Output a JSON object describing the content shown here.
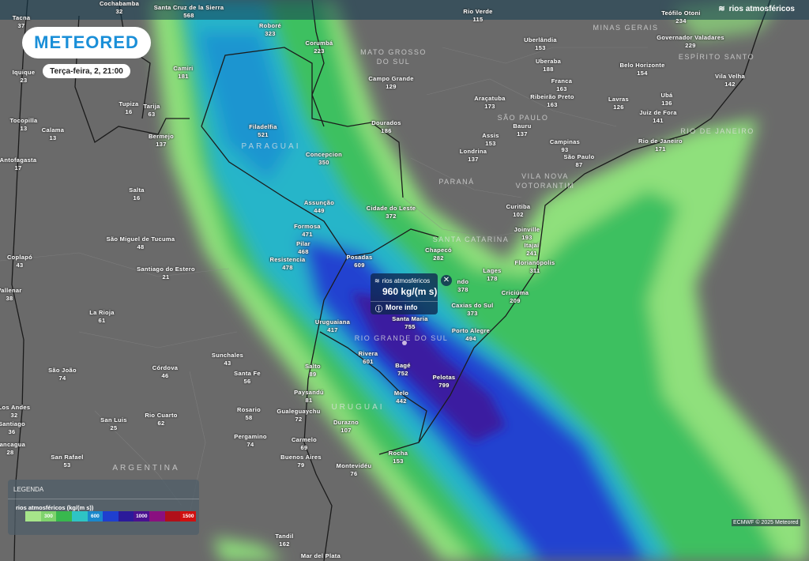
{
  "app": {
    "logo_text": "METEORED",
    "date_label": "Terça-feira, 2, 21:00"
  },
  "layer": {
    "title": "rios atmosféricos",
    "icon": "wind-layers-icon"
  },
  "popup": {
    "title": "rios atmosféricos",
    "value": "960 kg/(m s)",
    "more_info": "More info",
    "close": "✕"
  },
  "legend": {
    "header": "LEGENDA",
    "unit_label": "rios atmosféricos (kg/(m s))",
    "scale": [
      {
        "color": "#a6e58a",
        "label": ""
      },
      {
        "color": "#7fd36d",
        "label": "300"
      },
      {
        "color": "#38b84e",
        "label": ""
      },
      {
        "color": "#2ec4c4",
        "label": ""
      },
      {
        "color": "#1a88cc",
        "label": "600"
      },
      {
        "color": "#1f3fcf",
        "label": ""
      },
      {
        "color": "#2b1a9a",
        "label": ""
      },
      {
        "color": "#4a1190",
        "label": "1000"
      },
      {
        "color": "#8a1080",
        "label": ""
      },
      {
        "color": "#b0101a",
        "label": ""
      },
      {
        "color": "#d01010",
        "label": "1500"
      }
    ]
  },
  "credit": "ECMWF © 2025 Meteored",
  "regions": [
    "MATO GROSSO DO SUL",
    "MINAS GERAIS",
    "ESPÍRITO SANTO",
    "SÃO PAULO",
    "RIO DE JANEIRO",
    "VILA NOVA VOTORANTIM",
    "PARANÁ",
    "PARAGUAI",
    "SANTA CATARINA",
    "RIO GRANDE DO SUL",
    "URUGUAI",
    "ARGENTINA"
  ],
  "cities": [
    {
      "name": "Tacna",
      "value": "37"
    },
    {
      "name": "Cochabamba",
      "value": "32"
    },
    {
      "name": "Santa Cruz de la Sierra",
      "value": "568"
    },
    {
      "name": "Roboré",
      "value": "323"
    },
    {
      "name": "Corumbá",
      "value": "223"
    },
    {
      "name": "Rio Verde",
      "value": "115"
    },
    {
      "name": "Teófilo Otoni",
      "value": "234"
    },
    {
      "name": "Uberlândia",
      "value": "153"
    },
    {
      "name": "Governador Valadares",
      "value": "229"
    },
    {
      "name": "Uberaba",
      "value": "188"
    },
    {
      "name": "Belo Horizonte",
      "value": "154"
    },
    {
      "name": "Vila Velha",
      "value": "142"
    },
    {
      "name": "Franca",
      "value": "163"
    },
    {
      "name": "Campo Grande",
      "value": "129"
    },
    {
      "name": "Camiri",
      "value": "181"
    },
    {
      "name": "Iquique",
      "value": "23"
    },
    {
      "name": "Araçatuba",
      "value": "173"
    },
    {
      "name": "Ribeirão Preto",
      "value": "163"
    },
    {
      "name": "Lavras",
      "value": "126"
    },
    {
      "name": "Ubá",
      "value": "136"
    },
    {
      "name": "Juiz de Fora",
      "value": "141"
    },
    {
      "name": "Tupiza",
      "value": "16"
    },
    {
      "name": "Tarija",
      "value": "63"
    },
    {
      "name": "Tocopilla",
      "value": "13"
    },
    {
      "name": "Calama",
      "value": "13"
    },
    {
      "name": "Filadelfia",
      "value": "521"
    },
    {
      "name": "Dourados",
      "value": "186"
    },
    {
      "name": "Bauru",
      "value": "137"
    },
    {
      "name": "Assis",
      "value": "153"
    },
    {
      "name": "Campinas",
      "value": "93"
    },
    {
      "name": "Rio de Janeiro",
      "value": "171"
    },
    {
      "name": "São Paulo",
      "value": "87"
    },
    {
      "name": "Londrina",
      "value": "137"
    },
    {
      "name": "Bermejo",
      "value": "137"
    },
    {
      "name": "Concepcion",
      "value": "350"
    },
    {
      "name": "Antofagasta",
      "value": "17"
    },
    {
      "name": "Salta",
      "value": "16"
    },
    {
      "name": "Curitiba",
      "value": "102"
    },
    {
      "name": "Assunção",
      "value": "449"
    },
    {
      "name": "Cidade do Leste",
      "value": "372"
    },
    {
      "name": "Joinville",
      "value": "193"
    },
    {
      "name": "Formosa",
      "value": "471"
    },
    {
      "name": "São Miguel de Tucuma",
      "value": "48"
    },
    {
      "name": "Itajaí",
      "value": "241"
    },
    {
      "name": "Pilar",
      "value": "468"
    },
    {
      "name": "Chapecó",
      "value": "282"
    },
    {
      "name": "Coplapó",
      "value": "43"
    },
    {
      "name": "Florianópolis",
      "value": "311"
    },
    {
      "name": "Resistencia",
      "value": "478"
    },
    {
      "name": "Posadas",
      "value": "609"
    },
    {
      "name": "Santiago do Estero",
      "value": "21"
    },
    {
      "name": "Lages",
      "value": "178"
    },
    {
      "name": "ndo",
      "value": "378"
    },
    {
      "name": "Vallenar",
      "value": "38"
    },
    {
      "name": "Criciúma",
      "value": "209"
    },
    {
      "name": "La Rioja",
      "value": "61"
    },
    {
      "name": "Caxias do Sul",
      "value": "373"
    },
    {
      "name": "Santa Maria",
      "value": "755"
    },
    {
      "name": "Porto Alegre",
      "value": "494"
    },
    {
      "name": "Uruguaiana",
      "value": "417"
    },
    {
      "name": "Sunchales",
      "value": "43"
    },
    {
      "name": "Rivera",
      "value": "601"
    },
    {
      "name": "Salto",
      "value": "89"
    },
    {
      "name": "Bagé",
      "value": "752"
    },
    {
      "name": "Santa Fe",
      "value": "56"
    },
    {
      "name": "Córdova",
      "value": "46"
    },
    {
      "name": "São João",
      "value": "74"
    },
    {
      "name": "Pelotas",
      "value": "799"
    },
    {
      "name": "Paysandú",
      "value": "81"
    },
    {
      "name": "Melo",
      "value": "442"
    },
    {
      "name": "Los Andes",
      "value": "32"
    },
    {
      "name": "Rosario",
      "value": "58"
    },
    {
      "name": "Gualeguaychu",
      "value": "72"
    },
    {
      "name": "Durazno",
      "value": "107"
    },
    {
      "name": "Santiago",
      "value": "36"
    },
    {
      "name": "Rio Cuarto",
      "value": "62"
    },
    {
      "name": "San Luis",
      "value": "25"
    },
    {
      "name": "Carmelo",
      "value": "69"
    },
    {
      "name": "Pergamino",
      "value": "74"
    },
    {
      "name": "Rancagua",
      "value": "28"
    },
    {
      "name": "Buenos Aires",
      "value": "79"
    },
    {
      "name": "San Rafael",
      "value": "53"
    },
    {
      "name": "Rocha",
      "value": "153"
    },
    {
      "name": "Montevidéu",
      "value": "76"
    },
    {
      "name": "Tandil",
      "value": "162"
    },
    {
      "name": "Mar del Plata",
      "value": ""
    }
  ]
}
